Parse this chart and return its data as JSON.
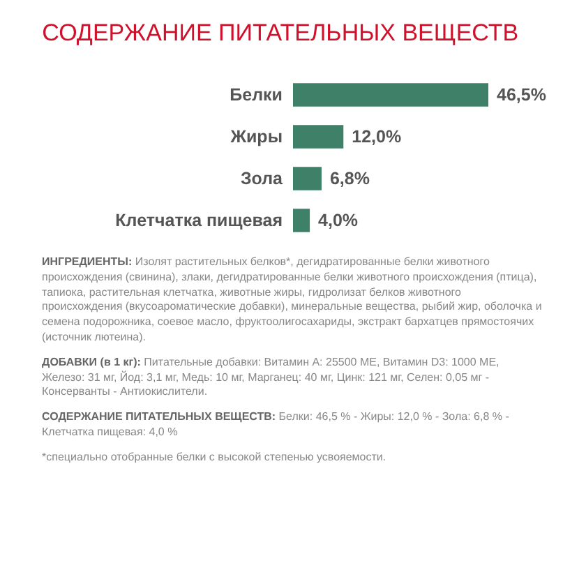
{
  "chart_data": {
    "type": "bar",
    "orientation": "horizontal",
    "title": "СОДЕРЖАНИЕ ПИТАТЕЛЬНЫХ ВЕЩЕСТВ",
    "categories": [
      "Белки",
      "Жиры",
      "Зола",
      "Клетчатка пищевая"
    ],
    "values": [
      46.5,
      12.0,
      6.8,
      4.0
    ],
    "value_labels": [
      "46,5%",
      "12,0%",
      "6,8%",
      "4,0%"
    ],
    "color": "#3e8168",
    "annotations": [
      "ИНГРЕДИЕНТЫ: Изолят растительных белков*, дегидратированные белки животного происхождения (свинина), злаки, дегидратированные белки животного происхождения (птица), тапиока, растительная клетчатка, животные жиры, гидролизат белков животного происхождения (вкусоароматические добавки), минеральные вещества, рыбий жир, оболочка и семена подорожника, соевое масло, фруктоолигосахариды, экстракт бархатцев прямостоячих (источник лютеина).",
      "ДОБАВКИ (в 1 кг): Питательные добавки: Витамин А: 25500 МЕ, Витамин D3: 1000 МЕ, Железо: 31 мг, Йод: 3,1 мг, Медь: 10 мг, Марганец: 40 мг, Цинк: 121 мг, Селен: 0,05 мг - Консерванты - Антиокислители.",
      "СОДЕРЖАНИЕ ПИТАТЕЛЬНЫХ ВЕЩЕСТВ: Белки: 46,5 % - Жиры: 12,0 % - Зола: 6,8 % - Клетчатка пищевая: 4,0 %",
      "*специально отобранные белки с высокой степенью усвояемости."
    ]
  }
}
